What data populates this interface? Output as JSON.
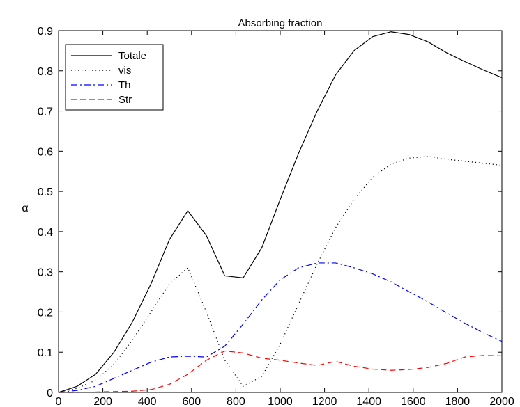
{
  "chart_data": {
    "type": "line",
    "title": "Absorbing fraction",
    "xlabel": "",
    "ylabel": "α",
    "xlim": [
      0,
      2000
    ],
    "ylim": [
      0,
      0.9
    ],
    "x_ticks": [
      "0",
      "200",
      "400",
      "600",
      "800",
      "1000",
      "1200",
      "1400",
      "1600",
      "1800",
      "2000"
    ],
    "y_ticks": [
      "0",
      "0.1",
      "0.2",
      "0.3",
      "0.4",
      "0.5",
      "0.6",
      "0.7",
      "0.8",
      "0.9"
    ],
    "grid": false,
    "legend_position": "top-left",
    "series": [
      {
        "name": "Totale",
        "color": "#000000",
        "style": "solid",
        "x": [
          0,
          83,
          167,
          250,
          333,
          417,
          500,
          583,
          667,
          750,
          833,
          917,
          1000,
          1083,
          1167,
          1250,
          1333,
          1417,
          1500,
          1583,
          1667,
          1750,
          1833,
          1917,
          2000
        ],
        "y": [
          0.0,
          0.015,
          0.045,
          0.1,
          0.175,
          0.27,
          0.38,
          0.452,
          0.39,
          0.29,
          0.285,
          0.36,
          0.48,
          0.595,
          0.7,
          0.79,
          0.85,
          0.885,
          0.897,
          0.89,
          0.872,
          0.845,
          0.823,
          0.802,
          0.783
        ]
      },
      {
        "name": "vis",
        "color": "#000000",
        "style": "dotted",
        "x": [
          0,
          83,
          167,
          250,
          333,
          417,
          500,
          583,
          667,
          750,
          833,
          917,
          1000,
          1083,
          1167,
          1250,
          1333,
          1417,
          1500,
          1583,
          1667,
          1750,
          1833,
          1917,
          2000
        ],
        "y": [
          0.0,
          0.01,
          0.03,
          0.07,
          0.13,
          0.2,
          0.27,
          0.31,
          0.2,
          0.08,
          0.015,
          0.04,
          0.12,
          0.22,
          0.32,
          0.41,
          0.48,
          0.535,
          0.568,
          0.583,
          0.587,
          0.58,
          0.575,
          0.57,
          0.565
        ]
      },
      {
        "name": "Th",
        "color": "#0000ff",
        "style": "dashdot",
        "x": [
          0,
          83,
          167,
          250,
          333,
          417,
          500,
          583,
          667,
          750,
          833,
          917,
          1000,
          1083,
          1167,
          1250,
          1333,
          1417,
          1500,
          1583,
          1667,
          1750,
          1833,
          1917,
          2000
        ],
        "y": [
          0.0,
          0.005,
          0.015,
          0.035,
          0.055,
          0.075,
          0.088,
          0.09,
          0.088,
          0.115,
          0.17,
          0.23,
          0.28,
          0.31,
          0.322,
          0.322,
          0.31,
          0.295,
          0.275,
          0.25,
          0.225,
          0.198,
          0.172,
          0.148,
          0.127
        ]
      },
      {
        "name": "Str",
        "color": "#ff0000",
        "style": "dashed",
        "x": [
          0,
          83,
          167,
          250,
          333,
          417,
          500,
          583,
          667,
          750,
          833,
          917,
          1000,
          1083,
          1167,
          1250,
          1333,
          1417,
          1500,
          1583,
          1667,
          1750,
          1833,
          1917,
          2000
        ],
        "y": [
          0.0,
          0.0,
          0.001,
          0.002,
          0.003,
          0.007,
          0.02,
          0.045,
          0.08,
          0.103,
          0.098,
          0.085,
          0.08,
          0.073,
          0.067,
          0.077,
          0.065,
          0.058,
          0.055,
          0.057,
          0.062,
          0.072,
          0.088,
          0.092,
          0.091
        ]
      }
    ]
  }
}
